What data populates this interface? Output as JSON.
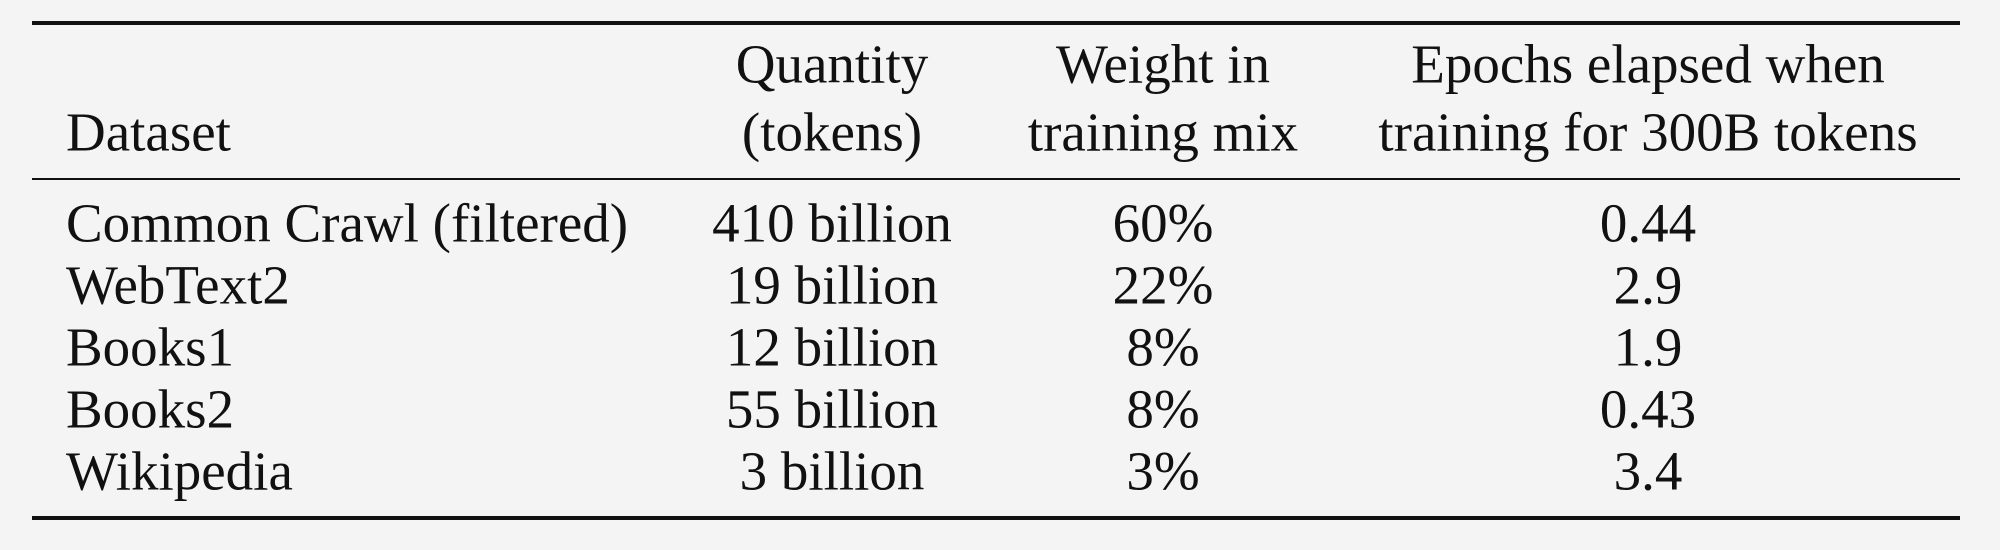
{
  "table": {
    "columns": [
      [
        "Dataset"
      ],
      [
        "Quantity",
        "(tokens)"
      ],
      [
        "Weight in",
        "training mix"
      ],
      [
        "Epochs elapsed when",
        "training for 300B tokens"
      ]
    ],
    "rows": [
      [
        "Common Crawl (filtered)",
        "410 billion",
        "60%",
        "0.44"
      ],
      [
        "WebText2",
        "19 billion",
        "22%",
        "2.9"
      ],
      [
        "Books1",
        "12 billion",
        "8%",
        "1.9"
      ],
      [
        "Books2",
        "55 billion",
        "8%",
        "0.43"
      ],
      [
        "Wikipedia",
        "3 billion",
        "3%",
        "3.4"
      ]
    ]
  }
}
